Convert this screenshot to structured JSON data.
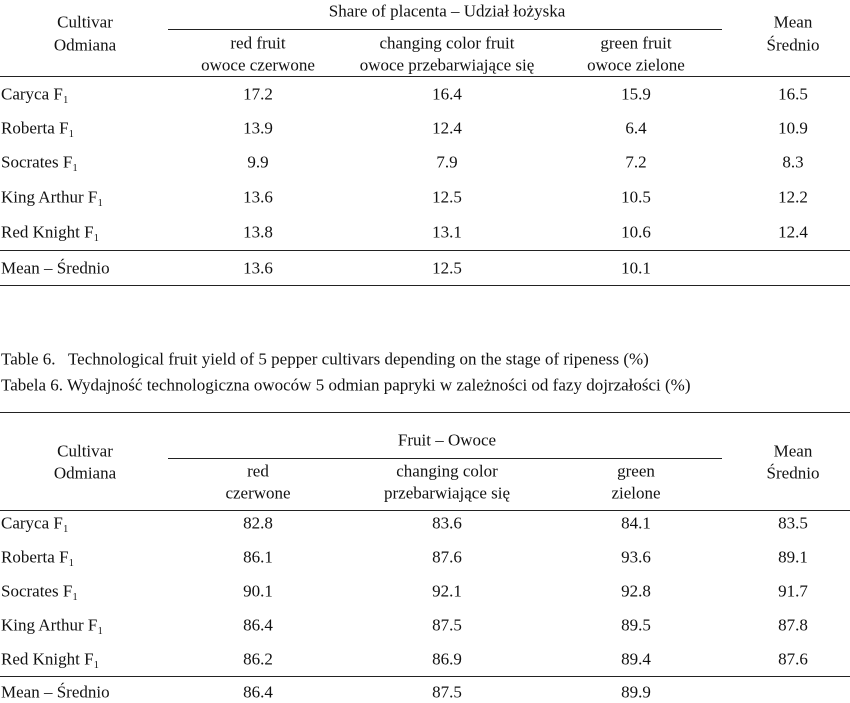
{
  "table1": {
    "header": {
      "cultivar": [
        "Cultivar",
        "Odmiana"
      ],
      "group": "Share of placenta – Udział łożyska",
      "columns": [
        [
          "red fruit",
          "owoce czerwone"
        ],
        [
          "changing color fruit",
          "owoce przebarwiające się"
        ],
        [
          "green fruit",
          "owoce zielone"
        ]
      ],
      "mean": [
        "Mean",
        "Średnio"
      ]
    },
    "rows": [
      [
        "Caryca F₁",
        17.2,
        16.4,
        15.9,
        16.5
      ],
      [
        "Roberta F₁",
        13.9,
        12.4,
        6.4,
        10.9
      ],
      [
        "Socrates F₁",
        9.9,
        7.9,
        7.2,
        8.3
      ],
      [
        "King Arthur F₁",
        13.6,
        12.5,
        10.5,
        12.2
      ],
      [
        "Red Knight F₁",
        13.8,
        13.1,
        10.6,
        12.4
      ]
    ],
    "mean_row": [
      "Mean – Średnio",
      13.6,
      12.5,
      10.1
    ]
  },
  "caption": [
    "Table 6.   Technological fruit yield of 5 pepper cultivars depending on the stage of ripeness (%)",
    "Tabela 6. Wydajność technologiczna owoców 5 odmian papryki w zależności od fazy dojrzałości (%)"
  ],
  "table2": {
    "header": {
      "cultivar": [
        "Cultivar",
        "Odmiana"
      ],
      "group": "Fruit – Owoce",
      "columns": [
        [
          "red",
          "czerwone"
        ],
        [
          "changing color",
          "przebarwiające się"
        ],
        [
          "green",
          "zielone"
        ]
      ],
      "mean": [
        "Mean",
        "Średnio"
      ]
    },
    "rows": [
      [
        "Caryca F₁",
        82.8,
        83.6,
        84.1,
        83.5
      ],
      [
        "Roberta F₁",
        86.1,
        87.6,
        93.6,
        89.1
      ],
      [
        "Socrates F₁",
        90.1,
        92.1,
        92.8,
        91.7
      ],
      [
        "King Arthur F₁",
        86.4,
        87.5,
        89.5,
        87.8
      ],
      [
        "Red Knight F₁",
        86.2,
        86.9,
        89.4,
        87.6
      ]
    ],
    "mean_row": [
      "Mean – Średnio",
      86.4,
      87.5,
      89.9
    ]
  }
}
